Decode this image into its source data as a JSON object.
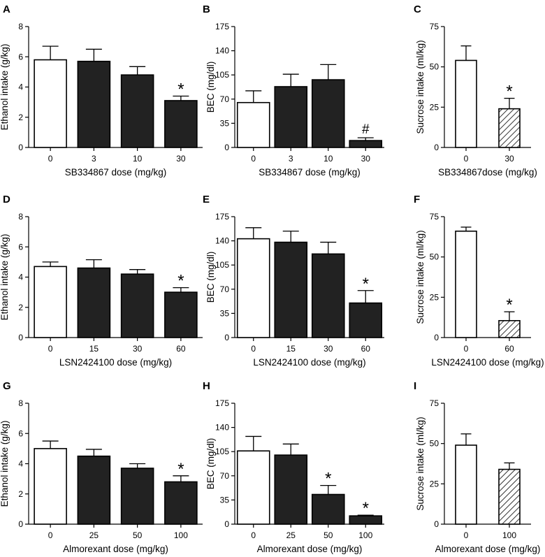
{
  "chart_data": [
    {
      "panel": "A",
      "type": "bar",
      "ylabel": "Ethanol intake (g/kg)",
      "xlabel": "SB334867 dose (mg/kg)",
      "ylim": [
        0,
        8
      ],
      "yticks": [
        "0",
        "2",
        "4",
        "6",
        "8"
      ],
      "categories": [
        "0",
        "3",
        "10",
        "30"
      ],
      "values": [
        5.8,
        5.7,
        4.8,
        3.1
      ],
      "errors": [
        0.9,
        0.8,
        0.55,
        0.3
      ],
      "fills": [
        "white",
        "black",
        "black",
        "black"
      ],
      "marks": [
        "",
        "",
        "",
        "*"
      ]
    },
    {
      "panel": "B",
      "type": "bar",
      "ylabel": "BEC (mg/dl)",
      "xlabel": "SB334867 dose (mg/kg)",
      "ylim": [
        0,
        175
      ],
      "yticks": [
        "0",
        "35",
        "70",
        "105",
        "140",
        "175"
      ],
      "categories": [
        "0",
        "3",
        "10",
        "30"
      ],
      "values": [
        65,
        88,
        98,
        10
      ],
      "errors": [
        17,
        18,
        22,
        4
      ],
      "fills": [
        "white",
        "black",
        "black",
        "black"
      ],
      "marks": [
        "",
        "",
        "",
        "#"
      ]
    },
    {
      "panel": "C",
      "type": "bar",
      "ylabel": "Sucrose intake (ml/kg)",
      "xlabel": "SB334867dose (mg/kg)",
      "ylim": [
        0,
        75
      ],
      "yticks": [
        "0",
        "25",
        "50",
        "75"
      ],
      "categories": [
        "0",
        "30"
      ],
      "values": [
        54,
        24
      ],
      "errors": [
        9,
        6.5
      ],
      "fills": [
        "white",
        "hatch"
      ],
      "marks": [
        "",
        "*"
      ]
    },
    {
      "panel": "D",
      "type": "bar",
      "ylabel": "Ethanol intake (g/kg)",
      "xlabel": "LSN2424100 dose (mg/kg)",
      "ylim": [
        0,
        8
      ],
      "yticks": [
        "0",
        "2",
        "4",
        "6",
        "8"
      ],
      "categories": [
        "0",
        "15",
        "30",
        "60"
      ],
      "values": [
        4.7,
        4.6,
        4.2,
        3.0
      ],
      "errors": [
        0.3,
        0.55,
        0.3,
        0.3
      ],
      "fills": [
        "white",
        "black",
        "black",
        "black"
      ],
      "marks": [
        "",
        "",
        "",
        "*"
      ]
    },
    {
      "panel": "E",
      "type": "bar",
      "ylabel": "BEC (mg/dl)",
      "xlabel": "LSN2424100 dose (mg/kg)",
      "ylim": [
        0,
        175
      ],
      "yticks": [
        "0",
        "35",
        "70",
        "105",
        "140",
        "175"
      ],
      "categories": [
        "0",
        "15",
        "30",
        "60"
      ],
      "values": [
        143,
        138,
        121,
        50
      ],
      "errors": [
        16,
        16,
        17,
        18
      ],
      "fills": [
        "white",
        "black",
        "black",
        "black"
      ],
      "marks": [
        "",
        "",
        "",
        "*"
      ]
    },
    {
      "panel": "F",
      "type": "bar",
      "ylabel": "Sucrose intake (ml/kg)",
      "xlabel": "LSN2424100 dose (mg/kg)",
      "ylim": [
        0,
        75
      ],
      "yticks": [
        "0",
        "25",
        "50",
        "75"
      ],
      "categories": [
        "0",
        "60"
      ],
      "values": [
        66,
        10.5
      ],
      "errors": [
        2.5,
        5.5
      ],
      "fills": [
        "white",
        "hatch"
      ],
      "marks": [
        "",
        "*"
      ]
    },
    {
      "panel": "G",
      "type": "bar",
      "ylabel": "Ethanol intake (g/kg)",
      "xlabel": "Almorexant dose (mg/kg)",
      "ylim": [
        0,
        8
      ],
      "yticks": [
        "0",
        "2",
        "4",
        "6",
        "8"
      ],
      "categories": [
        "0",
        "25",
        "50",
        "100"
      ],
      "values": [
        5.0,
        4.5,
        3.7,
        2.8
      ],
      "errors": [
        0.5,
        0.45,
        0.3,
        0.4
      ],
      "fills": [
        "white",
        "black",
        "black",
        "black"
      ],
      "marks": [
        "",
        "",
        "",
        "*"
      ]
    },
    {
      "panel": "H",
      "type": "bar",
      "ylabel": "BEC (mg/dl)",
      "xlabel": "Almorexant dose (mg/kg)",
      "ylim": [
        0,
        175
      ],
      "yticks": [
        "0",
        "35",
        "70",
        "105",
        "140",
        "175"
      ],
      "categories": [
        "0",
        "25",
        "50",
        "100"
      ],
      "values": [
        106,
        100,
        43,
        12
      ],
      "errors": [
        21,
        16,
        13,
        1
      ],
      "fills": [
        "white",
        "black",
        "black",
        "black"
      ],
      "marks": [
        "",
        "",
        "*",
        "*"
      ]
    },
    {
      "panel": "I",
      "type": "bar",
      "ylabel": "Sucrose intake (ml/kg)",
      "xlabel": "Almorexant dose (mg/kg)",
      "ylim": [
        0,
        75
      ],
      "yticks": [
        "0",
        "25",
        "50",
        "75"
      ],
      "categories": [
        "0",
        "100"
      ],
      "values": [
        49,
        34
      ],
      "errors": [
        7,
        4
      ],
      "fills": [
        "white",
        "hatch"
      ],
      "marks": [
        "",
        ""
      ]
    }
  ]
}
